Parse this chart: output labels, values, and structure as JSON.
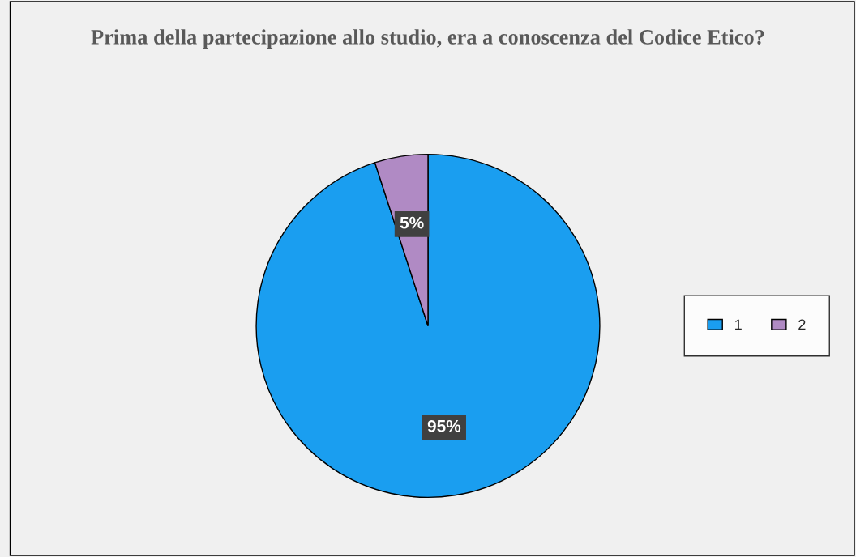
{
  "chart_data": {
    "type": "pie",
    "title": "Prima della partecipazione allo studio, era a conoscenza del Codice Etico?",
    "categories": [
      "1",
      "2"
    ],
    "values": [
      95,
      5
    ],
    "colors": [
      "#1a9ef0",
      "#b08ac4"
    ],
    "value_labels": [
      "95%",
      "5%"
    ],
    "legend": "right"
  }
}
